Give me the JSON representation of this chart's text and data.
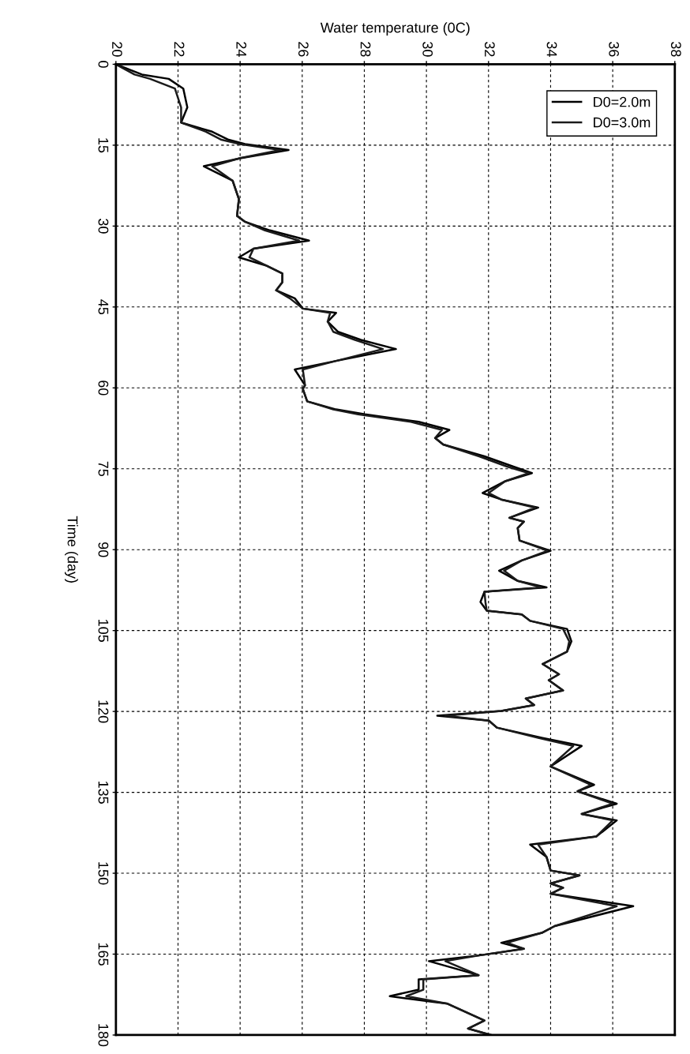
{
  "chart_data": {
    "type": "line",
    "xlabel": "Water temperature (0C)",
    "ylabel": "Time (day)",
    "xlim": [
      20,
      38
    ],
    "xticks": [
      20,
      22,
      24,
      26,
      28,
      30,
      32,
      34,
      36,
      38
    ],
    "ylim": [
      180,
      0
    ],
    "yticks": [
      0,
      15,
      30,
      45,
      60,
      75,
      90,
      105,
      120,
      135,
      150,
      165,
      180
    ],
    "grid": true,
    "legend": "top right",
    "line_style": "solid",
    "marker": "none",
    "series": [
      {
        "name": "D0=2.0m",
        "color": "#000000",
        "x": [
          20.0,
          20.84,
          21.7,
          22.17,
          22.3,
          22.1,
          23.1,
          23.63,
          24.16,
          25.56,
          24.03,
          22.83,
          23.76,
          23.96,
          23.9,
          24.16,
          24.96,
          26.22,
          24.43,
          23.96,
          24.83,
          25.36,
          25.36,
          25.16,
          25.76,
          26.02,
          27.09,
          26.82,
          27.15,
          27.89,
          29.02,
          27.09,
          25.76,
          26.09,
          26.02,
          26.16,
          27.09,
          28.02,
          29.75,
          30.74,
          30.28,
          30.54,
          31.87,
          32.8,
          33.4,
          32.54,
          31.81,
          32.41,
          33.6,
          32.67,
          33.14,
          32.94,
          33.0,
          34.0,
          33.07,
          32.34,
          32.94,
          33.87,
          31.87,
          31.74,
          31.94,
          33.07,
          33.34,
          34.53,
          34.67,
          34.53,
          33.74,
          34.27,
          33.94,
          34.4,
          33.2,
          33.47,
          32.41,
          30.35,
          32.01,
          32.27,
          33.74,
          35.0,
          34.0,
          35.4,
          34.87,
          36.13,
          35.0,
          36.13,
          35.47,
          33.34,
          33.87,
          34.0,
          34.93,
          34.0,
          34.4,
          34.0,
          36.66,
          34.13,
          33.74,
          32.41,
          33.14,
          31.74,
          30.08,
          31.68,
          29.75,
          29.75,
          28.82,
          30.68,
          31.87,
          31.34,
          32.07
        ],
        "values": [
          0,
          1.9,
          2.7,
          4.5,
          8.0,
          10.8,
          12.5,
          14.0,
          14.8,
          15.9,
          17.4,
          18.9,
          21.6,
          25.0,
          28.1,
          29.2,
          30.8,
          32.7,
          34.2,
          35.8,
          37.3,
          38.8,
          40.4,
          41.9,
          43.4,
          45.3,
          46.1,
          47.7,
          49.6,
          51.1,
          52.8,
          55.0,
          56.6,
          59.5,
          60.2,
          62.5,
          64.0,
          64.9,
          66.3,
          67.8,
          69.3,
          70.5,
          72.7,
          74.6,
          75.8,
          77.3,
          79.5,
          80.7,
          82.2,
          84.1,
          84.8,
          86.0,
          88.3,
          90.2,
          92.0,
          93.9,
          95.8,
          97.0,
          97.8,
          99.7,
          101.3,
          102.0,
          103.2,
          104.7,
          107.0,
          108.9,
          111.2,
          113.1,
          114.2,
          116.1,
          117.6,
          118.8,
          119.9,
          120.8,
          121.7,
          123.0,
          124.9,
          126.4,
          130.2,
          133.6,
          134.8,
          137.1,
          139.0,
          140.2,
          143.2,
          144.7,
          147.0,
          149.5,
          150.4,
          151.9,
          152.7,
          153.8,
          156.1,
          159.8,
          161.0,
          162.9,
          164.0,
          165.2,
          166.3,
          168.9,
          169.7,
          171.6,
          172.8,
          174.2,
          177.3,
          178.8,
          180
        ]
      },
      {
        "name": "D0=3.0m",
        "color": "#1a1a1a",
        "x": [
          20.0,
          20.6,
          21.1,
          21.9,
          22.1,
          22.1,
          22.9,
          23.4,
          24.0,
          25.3,
          24.0,
          23.1,
          23.76,
          23.96,
          23.9,
          24.16,
          24.8,
          25.9,
          24.43,
          24.3,
          24.83,
          25.36,
          25.36,
          25.16,
          25.6,
          26.02,
          26.9,
          26.82,
          27.0,
          27.7,
          28.6,
          27.09,
          26.02,
          26.09,
          26.02,
          26.16,
          27.0,
          27.8,
          29.5,
          30.5,
          30.28,
          30.54,
          31.7,
          32.6,
          33.3,
          32.54,
          32.0,
          32.41,
          33.5,
          32.67,
          33.14,
          32.94,
          33.0,
          33.9,
          33.07,
          32.5,
          32.94,
          33.7,
          31.87,
          31.9,
          31.94,
          33.07,
          33.34,
          34.4,
          34.6,
          34.53,
          33.74,
          34.27,
          33.94,
          34.4,
          33.2,
          33.47,
          32.41,
          30.6,
          32.01,
          32.27,
          33.6,
          34.73,
          34.0,
          35.3,
          34.87,
          36.0,
          35.0,
          36.0,
          35.47,
          33.6,
          33.87,
          34.0,
          34.93,
          34.0,
          34.4,
          34.0,
          36.13,
          34.13,
          33.74,
          32.6,
          33.14,
          31.74,
          30.61,
          31.68,
          29.9,
          29.9,
          29.35,
          30.68,
          31.87,
          31.34,
          32.07
        ],
        "values": [
          0,
          1.9,
          2.7,
          4.5,
          8.0,
          10.8,
          12.5,
          14.0,
          14.8,
          15.9,
          17.4,
          18.9,
          21.6,
          25.0,
          28.1,
          29.2,
          30.8,
          32.7,
          34.2,
          35.8,
          37.3,
          38.8,
          40.4,
          41.9,
          43.4,
          45.3,
          46.1,
          47.7,
          49.6,
          51.1,
          52.8,
          55.0,
          56.6,
          59.5,
          60.2,
          62.5,
          64.0,
          64.9,
          66.3,
          67.8,
          69.3,
          70.5,
          72.7,
          74.6,
          75.8,
          77.3,
          79.5,
          80.7,
          82.2,
          84.1,
          84.8,
          86.0,
          88.3,
          90.2,
          92.0,
          93.9,
          95.8,
          97.0,
          97.8,
          99.7,
          101.3,
          102.0,
          103.2,
          104.7,
          107.0,
          108.9,
          111.2,
          113.1,
          114.2,
          116.1,
          117.6,
          118.8,
          119.9,
          120.8,
          121.7,
          123.0,
          124.9,
          126.4,
          130.2,
          133.6,
          134.8,
          137.1,
          139.0,
          140.2,
          143.2,
          144.7,
          147.0,
          149.5,
          150.4,
          151.9,
          152.7,
          153.8,
          156.1,
          159.8,
          161.0,
          162.9,
          164.0,
          165.2,
          166.3,
          168.9,
          169.7,
          171.6,
          172.8,
          174.2,
          177.3,
          178.8,
          180
        ]
      }
    ]
  }
}
